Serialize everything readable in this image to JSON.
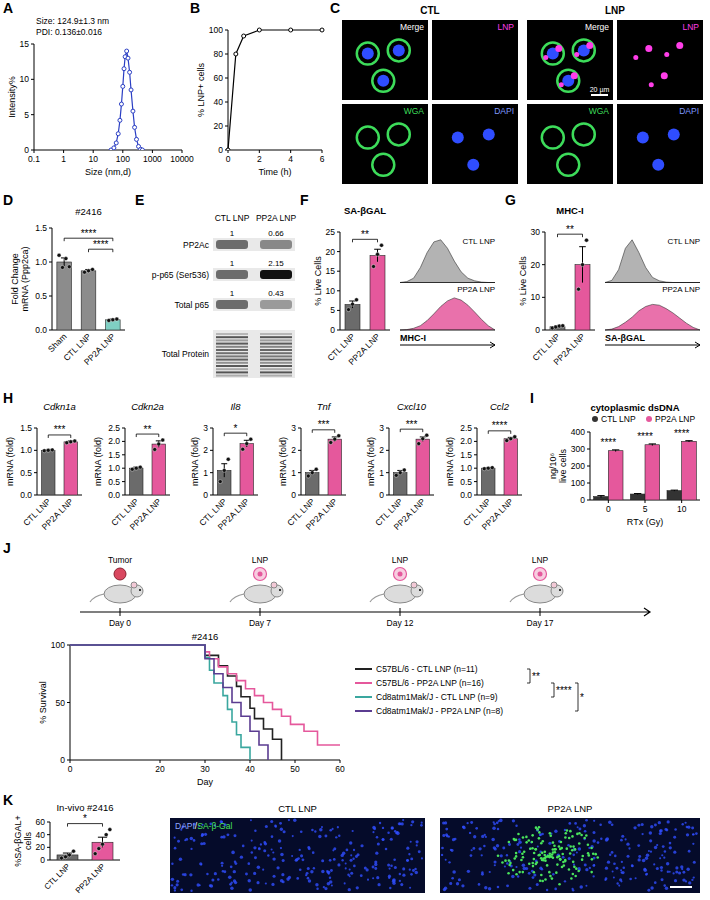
{
  "chart_data": [
    {
      "panel": "A",
      "type": "line",
      "annotations": [
        "Size: 124.9±1.3 nm",
        "PDI: 0.136±0.016"
      ],
      "x_label": "Size (nm,d)",
      "y_label": "Intensity%",
      "x": [
        40,
        50,
        60,
        70,
        80,
        90,
        100,
        110,
        120,
        135,
        150,
        170,
        190,
        220,
        250,
        290,
        340,
        400,
        460
      ],
      "values": [
        0,
        0.3,
        1.0,
        2.3,
        4.2,
        6.5,
        9.0,
        11.5,
        13.2,
        14.0,
        13.0,
        11.0,
        8.5,
        5.5,
        3.2,
        1.5,
        0.5,
        0.1,
        0
      ],
      "color": "#2b3fc4",
      "marker": "circle",
      "log": "x",
      "xlim": [
        0.1,
        10000
      ],
      "xticks": [
        0.1,
        1,
        10,
        100,
        1000,
        10000
      ],
      "ylim": [
        0,
        15
      ],
      "yticks": [
        0,
        5,
        10,
        15
      ]
    },
    {
      "panel": "B",
      "type": "line",
      "x_label": "Time (h)",
      "y_label": "% LNP+ cells",
      "x": [
        0,
        0.5,
        1,
        2,
        4,
        6
      ],
      "values": [
        0,
        80,
        95,
        100,
        100,
        100
      ],
      "color": "#000000",
      "marker": "circle",
      "xlim": [
        0,
        6
      ],
      "xticks": [
        0,
        2,
        4,
        6
      ],
      "ylim": [
        0,
        100
      ],
      "yticks": [
        0,
        20,
        40,
        60,
        80,
        100
      ]
    },
    {
      "panel": "C",
      "type": "image",
      "groups": [
        {
          "title": "CTL",
          "tiles": [
            "Merge",
            "LNP",
            "WGA",
            "DAPI"
          ]
        },
        {
          "title": "LNP",
          "tiles": [
            "Merge",
            "LNP",
            "WGA",
            "DAPI"
          ]
        }
      ],
      "scale_bar": "20 µm"
    },
    {
      "panel": "D",
      "type": "bar",
      "subtitle": "#2416",
      "y_label": "Fold Change mRNA (Ppp2ca)",
      "categories": [
        "Sham",
        "CTL LNP",
        "PP2A LNP"
      ],
      "values": [
        1.0,
        0.87,
        0.15
      ],
      "errors": [
        0.06,
        0.02,
        0.01
      ],
      "points": [
        [
          1.1,
          0.92,
          1.05,
          0.93
        ],
        [
          0.85,
          0.87,
          0.89
        ],
        [
          0.14,
          0.15,
          0.16
        ]
      ],
      "colors": [
        "#8c8c8c",
        "#8c8c8c",
        "#7fcfc3"
      ],
      "ylim": [
        0,
        1.5
      ],
      "yticks": [
        {
          "value": 0,
          "label": "0.0"
        },
        0.5,
        {
          "value": 1,
          "label": "1.0"
        },
        1.5
      ],
      "significance": [
        {
          "between": [
            "CTL LNP",
            "PP2A LNP"
          ],
          "label": "****"
        },
        {
          "between": [
            "Sham",
            "PP2A LNP"
          ],
          "label": "****"
        }
      ]
    },
    {
      "panel": "E",
      "type": "blot",
      "columns": [
        "CTL LNP",
        "PP2A LNP"
      ],
      "rows": [
        {
          "label": "PP2Ac",
          "values": [
            1,
            0.66
          ]
        },
        {
          "label": "p-p65 (Ser536)",
          "values": [
            1,
            2.15
          ]
        },
        {
          "label": "Total p65",
          "values": [
            1,
            0.43
          ]
        },
        {
          "label": "Total Protein"
        }
      ]
    },
    {
      "panel": "F",
      "type": "bar",
      "title": "SA-βGAL",
      "y_label": "% Live Cells",
      "categories": [
        "CTL LNP",
        "PP2A LNP"
      ],
      "values": [
        6.5,
        19
      ],
      "errors": [
        0.9,
        1.6
      ],
      "points": [
        [
          5.2,
          6.6,
          7.7
        ],
        [
          16.2,
          19.3,
          21.6
        ]
      ],
      "colors": [
        "#6b6b6b",
        "#e5589c"
      ],
      "ylim": [
        0,
        25
      ],
      "yticks": [
        0,
        5,
        10,
        15,
        20,
        25
      ],
      "significance": [
        {
          "between": [
            "CTL LNP",
            "PP2A LNP"
          ],
          "label": "**"
        }
      ],
      "histogram": {
        "x_label": "MHC-I",
        "series": [
          {
            "name": "CTL LNP",
            "color": "#a6a6a6",
            "values": [
              0,
              2,
              10,
              35,
              70,
              95,
              100,
              80,
              50,
              25,
              10,
              4,
              1,
              0,
              0
            ]
          },
          {
            "name": "PP2A LNP",
            "color": "#e5589c",
            "values": [
              0,
              1,
              4,
              10,
              22,
              38,
              55,
              68,
              75,
              70,
              58,
              42,
              25,
              10,
              0
            ]
          }
        ]
      }
    },
    {
      "panel": "G",
      "type": "bar",
      "title": "MHC-I",
      "y_label": "% Live Cells",
      "categories": [
        "CTL LNP",
        "PP2A LNP"
      ],
      "values": [
        1.0,
        20
      ],
      "errors": [
        0.25,
        5.5
      ],
      "points": [
        [
          0.6,
          0.9,
          1.2,
          1.3
        ],
        [
          12.5,
          20,
          27.5
        ]
      ],
      "colors": [
        "#6b6b6b",
        "#e5589c"
      ],
      "ylim": [
        0,
        30
      ],
      "yticks": [
        0,
        10,
        20,
        30
      ],
      "significance": [
        {
          "between": [
            "CTL LNP",
            "PP2A LNP"
          ],
          "label": "**"
        }
      ],
      "histogram": {
        "x_label": "SA-βGAL",
        "series": [
          {
            "name": "CTL LNP",
            "color": "#a6a6a6",
            "values": [
              0,
              5,
              30,
              80,
              100,
              70,
              35,
              12,
              4,
              1,
              0,
              0,
              0,
              0,
              0
            ]
          },
          {
            "name": "PP2A LNP",
            "color": "#e5589c",
            "values": [
              0,
              2,
              8,
              18,
              30,
              45,
              55,
              60,
              58,
              50,
              40,
              28,
              16,
              6,
              0
            ]
          }
        ]
      }
    },
    {
      "panel": "H",
      "type": "bar",
      "title": "Cdkn1a",
      "y_label": "mRNA (fold)",
      "categories": [
        "CTL LNP",
        "PP2A LNP"
      ],
      "values": [
        1.0,
        1.19
      ],
      "errors": [
        0.01,
        0.02
      ],
      "points": [
        [
          0.99,
          1.0,
          1.01
        ],
        [
          1.17,
          1.19,
          1.21
        ]
      ],
      "colors": [
        "#6b6b6b",
        "#e5589c"
      ],
      "ylim": [
        0,
        1.5
      ],
      "yticks": [
        {
          "value": 0,
          "label": "0.0"
        },
        0.5,
        {
          "value": 1,
          "label": "1.0"
        },
        1.5
      ],
      "significance": [
        {
          "between": [
            "CTL LNP",
            "PP2A LNP"
          ],
          "label": "***"
        }
      ]
    },
    {
      "type": "bar",
      "title": "Cdkn2a",
      "y_label": "mRNA (fold)",
      "categories": [
        "CTL LNP",
        "PP2A LNP"
      ],
      "values": [
        1.0,
        1.9
      ],
      "errors": [
        0.04,
        0.12
      ],
      "points": [
        [
          0.96,
          1.0,
          1.04
        ],
        [
          1.7,
          1.9,
          2.05
        ]
      ],
      "colors": [
        "#6b6b6b",
        "#e5589c"
      ],
      "ylim": [
        0,
        2.5
      ],
      "yticks": [
        {
          "value": 0,
          "label": "0.0"
        },
        0.5,
        {
          "value": 1,
          "label": "1.0"
        },
        1.5,
        {
          "value": 2,
          "label": "2.0"
        },
        2.5
      ],
      "significance": [
        {
          "between": [
            "CTL LNP",
            "PP2A LNP"
          ],
          "label": "**"
        }
      ]
    },
    {
      "type": "bar",
      "title": "Il8",
      "y_label": "mRNA (fold)",
      "categories": [
        "CTL LNP",
        "PP2A LNP"
      ],
      "values": [
        1.1,
        2.3
      ],
      "errors": [
        0.3,
        0.15
      ],
      "points": [
        [
          0.6,
          1.1,
          1.6
        ],
        [
          2.05,
          2.3,
          2.5
        ]
      ],
      "colors": [
        "#6b6b6b",
        "#e5589c"
      ],
      "ylim": [
        0,
        3
      ],
      "yticks": [
        0,
        1,
        2,
        3
      ],
      "significance": [
        {
          "between": [
            "CTL LNP",
            "PP2A LNP"
          ],
          "label": "*"
        }
      ]
    },
    {
      "type": "bar",
      "title": "Tnf",
      "y_label": "mRNA (fold)",
      "categories": [
        "CTL LNP",
        "PP2A LNP"
      ],
      "values": [
        1.0,
        2.5
      ],
      "errors": [
        0.1,
        0.1
      ],
      "points": [
        [
          0.85,
          1.0,
          1.15
        ],
        [
          2.35,
          2.5,
          2.65
        ]
      ],
      "colors": [
        "#6b6b6b",
        "#e5589c"
      ],
      "ylim": [
        0,
        3
      ],
      "yticks": [
        0,
        1,
        2,
        3
      ],
      "significance": [
        {
          "between": [
            "CTL LNP",
            "PP2A LNP"
          ],
          "label": "***"
        }
      ]
    },
    {
      "type": "bar",
      "title": "Cxcl10",
      "y_label": "mRNA (fold)",
      "categories": [
        "CTL LNP",
        "PP2A LNP"
      ],
      "values": [
        1.0,
        2.5
      ],
      "errors": [
        0.1,
        0.1
      ],
      "points": [
        [
          0.88,
          1.0,
          1.12
        ],
        [
          2.3,
          2.52,
          2.68
        ]
      ],
      "colors": [
        "#6b6b6b",
        "#e5589c"
      ],
      "ylim": [
        0,
        3
      ],
      "yticks": [
        0,
        1,
        2,
        3
      ],
      "significance": [
        {
          "between": [
            "CTL LNP",
            "PP2A LNP"
          ],
          "label": "***"
        }
      ]
    },
    {
      "type": "bar",
      "title": "Ccl2",
      "y_label": "mRNA (fold)",
      "categories": [
        "CTL LNP",
        "PP2A LNP"
      ],
      "values": [
        1.0,
        2.1
      ],
      "errors": [
        0.02,
        0.05
      ],
      "points": [
        [
          0.98,
          1.0,
          1.02
        ],
        [
          2.03,
          2.1,
          2.17
        ]
      ],
      "colors": [
        "#6b6b6b",
        "#e5589c"
      ],
      "ylim": [
        0,
        2.5
      ],
      "yticks": [
        {
          "value": 0,
          "label": "0.0"
        },
        0.5,
        {
          "value": 1,
          "label": "1.0"
        },
        1.5,
        {
          "value": 2,
          "label": "2.0"
        },
        2.5
      ],
      "significance": [
        {
          "between": [
            "CTL LNP",
            "PP2A LNP"
          ],
          "label": "****"
        }
      ]
    },
    {
      "panel": "I",
      "type": "bar",
      "title": "cytoplasmic dsDNA",
      "x_label": "RTx (Gy)",
      "y_label": "ng/10⁶ live cells",
      "categories": [
        "0",
        "5",
        "10"
      ],
      "series": [
        {
          "name": "CTL LNP",
          "color": "#333333",
          "values": [
            20,
            35,
            55
          ],
          "errors": [
            6,
            3,
            3
          ]
        },
        {
          "name": "PP2A LNP",
          "color": "#e5589c",
          "values": [
            290,
            325,
            345
          ],
          "errors": [
            5,
            5,
            4
          ]
        }
      ],
      "ylim": [
        0,
        400
      ],
      "yticks": [
        0,
        100,
        200,
        300,
        400
      ],
      "legend": "top",
      "significance": [
        "****",
        "****",
        "****"
      ]
    },
    {
      "panel": "J",
      "type": "line",
      "line_style": "step",
      "subtitle": "#2416",
      "x_label": "Day",
      "y_label": "% Survival",
      "schematic": [
        {
          "label": "Tumor",
          "day": "Day 0"
        },
        {
          "label": "LNP",
          "day": "Day 7"
        },
        {
          "label": "LNP",
          "day": "Day 12"
        },
        {
          "label": "LNP",
          "day": "Day 17"
        }
      ],
      "series": [
        {
          "name": "C57BL/6 - CTL LNP (n=11)",
          "color": "#222222",
          "x": [
            0,
            30,
            33,
            35,
            37,
            38,
            40,
            41,
            43,
            45,
            47
          ],
          "values": [
            100,
            91,
            82,
            73,
            64,
            55,
            45,
            36,
            27,
            18,
            0
          ]
        },
        {
          "name": "C57BL/6 - PP2A LNP (n=16)",
          "color": "#e5589c",
          "x": [
            0,
            30,
            31,
            33,
            35,
            37,
            39,
            41,
            43,
            45,
            47,
            49,
            52,
            55,
            60
          ],
          "values": [
            100,
            94,
            88,
            81,
            75,
            69,
            62,
            56,
            50,
            44,
            38,
            31,
            25,
            13,
            13
          ]
        },
        {
          "name": "Cd8atm1Mak/J - CTL LNP (n=9)",
          "color": "#3aa79f",
          "x": [
            0,
            30,
            31,
            32,
            34,
            35,
            36,
            37,
            38,
            40
          ],
          "values": [
            100,
            89,
            78,
            67,
            56,
            44,
            33,
            22,
            11,
            0
          ]
        },
        {
          "name": "Cd8atm1Mak/J - PP2A LNP (n=8)",
          "color": "#5b3c91",
          "x": [
            0,
            30,
            32,
            34,
            36,
            38,
            40,
            42,
            44
          ],
          "values": [
            100,
            88,
            75,
            63,
            50,
            38,
            25,
            13,
            0
          ]
        }
      ],
      "xlim": [
        0,
        60
      ],
      "xticks": [
        0,
        20,
        30,
        40,
        50,
        60
      ],
      "ylim": [
        0,
        100
      ],
      "yticks": [
        0,
        50,
        100
      ],
      "legend": "right",
      "significance": [
        {
          "between": [
            "C57BL/6 - CTL LNP (n=11)",
            "C57BL/6 - PP2A LNP (n=16)"
          ],
          "label": "**"
        },
        {
          "between": [
            "C57BL/6 - PP2A LNP (n=16)",
            "Cd8atm1Mak/J - CTL LNP (n=9)"
          ],
          "label": "****"
        },
        {
          "between": [
            "C57BL/6 - PP2A LNP (n=16)",
            "Cd8atm1Mak/J - PP2A LNP (n=8)"
          ],
          "label": "*"
        }
      ]
    },
    {
      "panel": "K",
      "type": "bar",
      "subtitle": "In-vivo #2416",
      "y_label": "%SA-βGAL+ cells",
      "categories": [
        "CTL LNP",
        "PP2A LNP"
      ],
      "values": [
        8,
        28
      ],
      "errors": [
        3,
        8
      ],
      "points": [
        [
          3,
          5,
          8,
          14
        ],
        [
          10,
          18,
          25,
          40,
          48
        ]
      ],
      "colors": [
        "#6b6b6b",
        "#e5589c"
      ],
      "ylim": [
        0,
        60
      ],
      "yticks": [
        0,
        20,
        40,
        60
      ],
      "significance": [
        {
          "between": [
            "CTL LNP",
            "PP2A LNP"
          ],
          "label": "*"
        }
      ],
      "images": {
        "titles": [
          "CTL LNP",
          "PP2A LNP"
        ],
        "stain": "DAPI/SA-β-Gal"
      }
    }
  ]
}
